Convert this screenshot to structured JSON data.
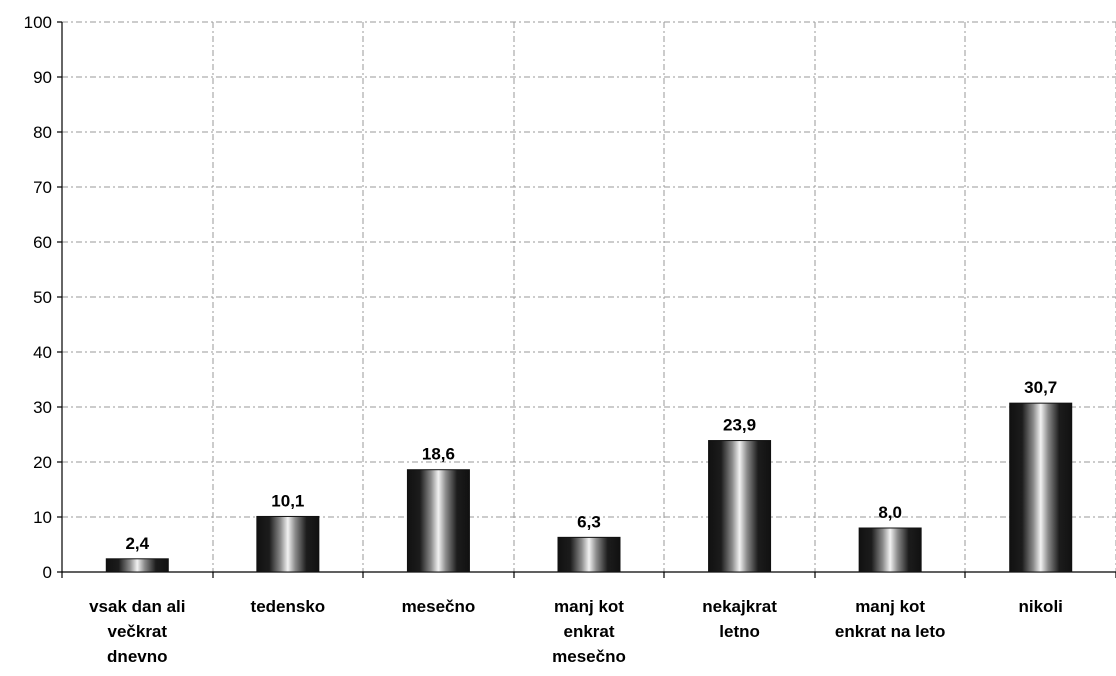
{
  "chart_data": {
    "type": "bar",
    "title": "",
    "xlabel": "",
    "ylabel": "",
    "categories": [
      "vsak dan ali večkrat dnevno",
      "tedensko",
      "mesečno",
      "manj kot enkrat mesečno",
      "nekajkrat letno",
      "manj kot enkrat na leto",
      "nikoli"
    ],
    "category_lines": [
      [
        "vsak dan ali",
        "večkrat",
        "dnevno"
      ],
      [
        "tedensko"
      ],
      [
        "mesečno"
      ],
      [
        "manj kot",
        "enkrat",
        "mesečno"
      ],
      [
        "nekajkrat",
        "letno"
      ],
      [
        "manj kot",
        "enkrat na leto"
      ],
      [
        "nikoli"
      ]
    ],
    "values": [
      2.4,
      10.1,
      18.6,
      6.3,
      23.9,
      8.0,
      30.7
    ],
    "value_labels": [
      "2,4",
      "10,1",
      "18,6",
      "6,3",
      "23,9",
      "8,0",
      "30,7"
    ],
    "ylim": [
      0,
      100
    ],
    "yticks": [
      0,
      10,
      20,
      30,
      40,
      50,
      60,
      70,
      80,
      90,
      100
    ],
    "grid": true,
    "legend": "none",
    "colors": {
      "bar_edge": "#111111",
      "bar_center": "#f2f2f2",
      "grid": "#9a9a9a",
      "axis": "#000000"
    }
  }
}
